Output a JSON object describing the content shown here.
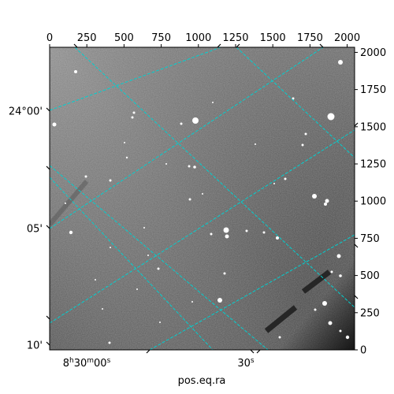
{
  "x_axis_label": "pos.eq.ra",
  "top_pixel_ticks": [
    "0",
    "250",
    "500",
    "750",
    "1000",
    "1250",
    "1500",
    "1750",
    "2000"
  ],
  "right_pixel_ticks": [
    "0",
    "250",
    "500",
    "750",
    "1000",
    "1250",
    "1500",
    "1750",
    "2000"
  ],
  "ra_ticks": [
    {
      "h": "8",
      "m": "30",
      "s": "00",
      "label_parts": [
        "8",
        "h",
        "30",
        "m",
        "00",
        "s"
      ]
    },
    {
      "label_parts": [
        "30",
        "s"
      ]
    }
  ],
  "dec_ticks": [
    "24°00'",
    "05'",
    "10'"
  ],
  "colors": {
    "grid": "#00d0d0",
    "sky_dark": "#3a3a3a",
    "sky_light": "#8c8c8c",
    "star": "#ffffff"
  }
}
